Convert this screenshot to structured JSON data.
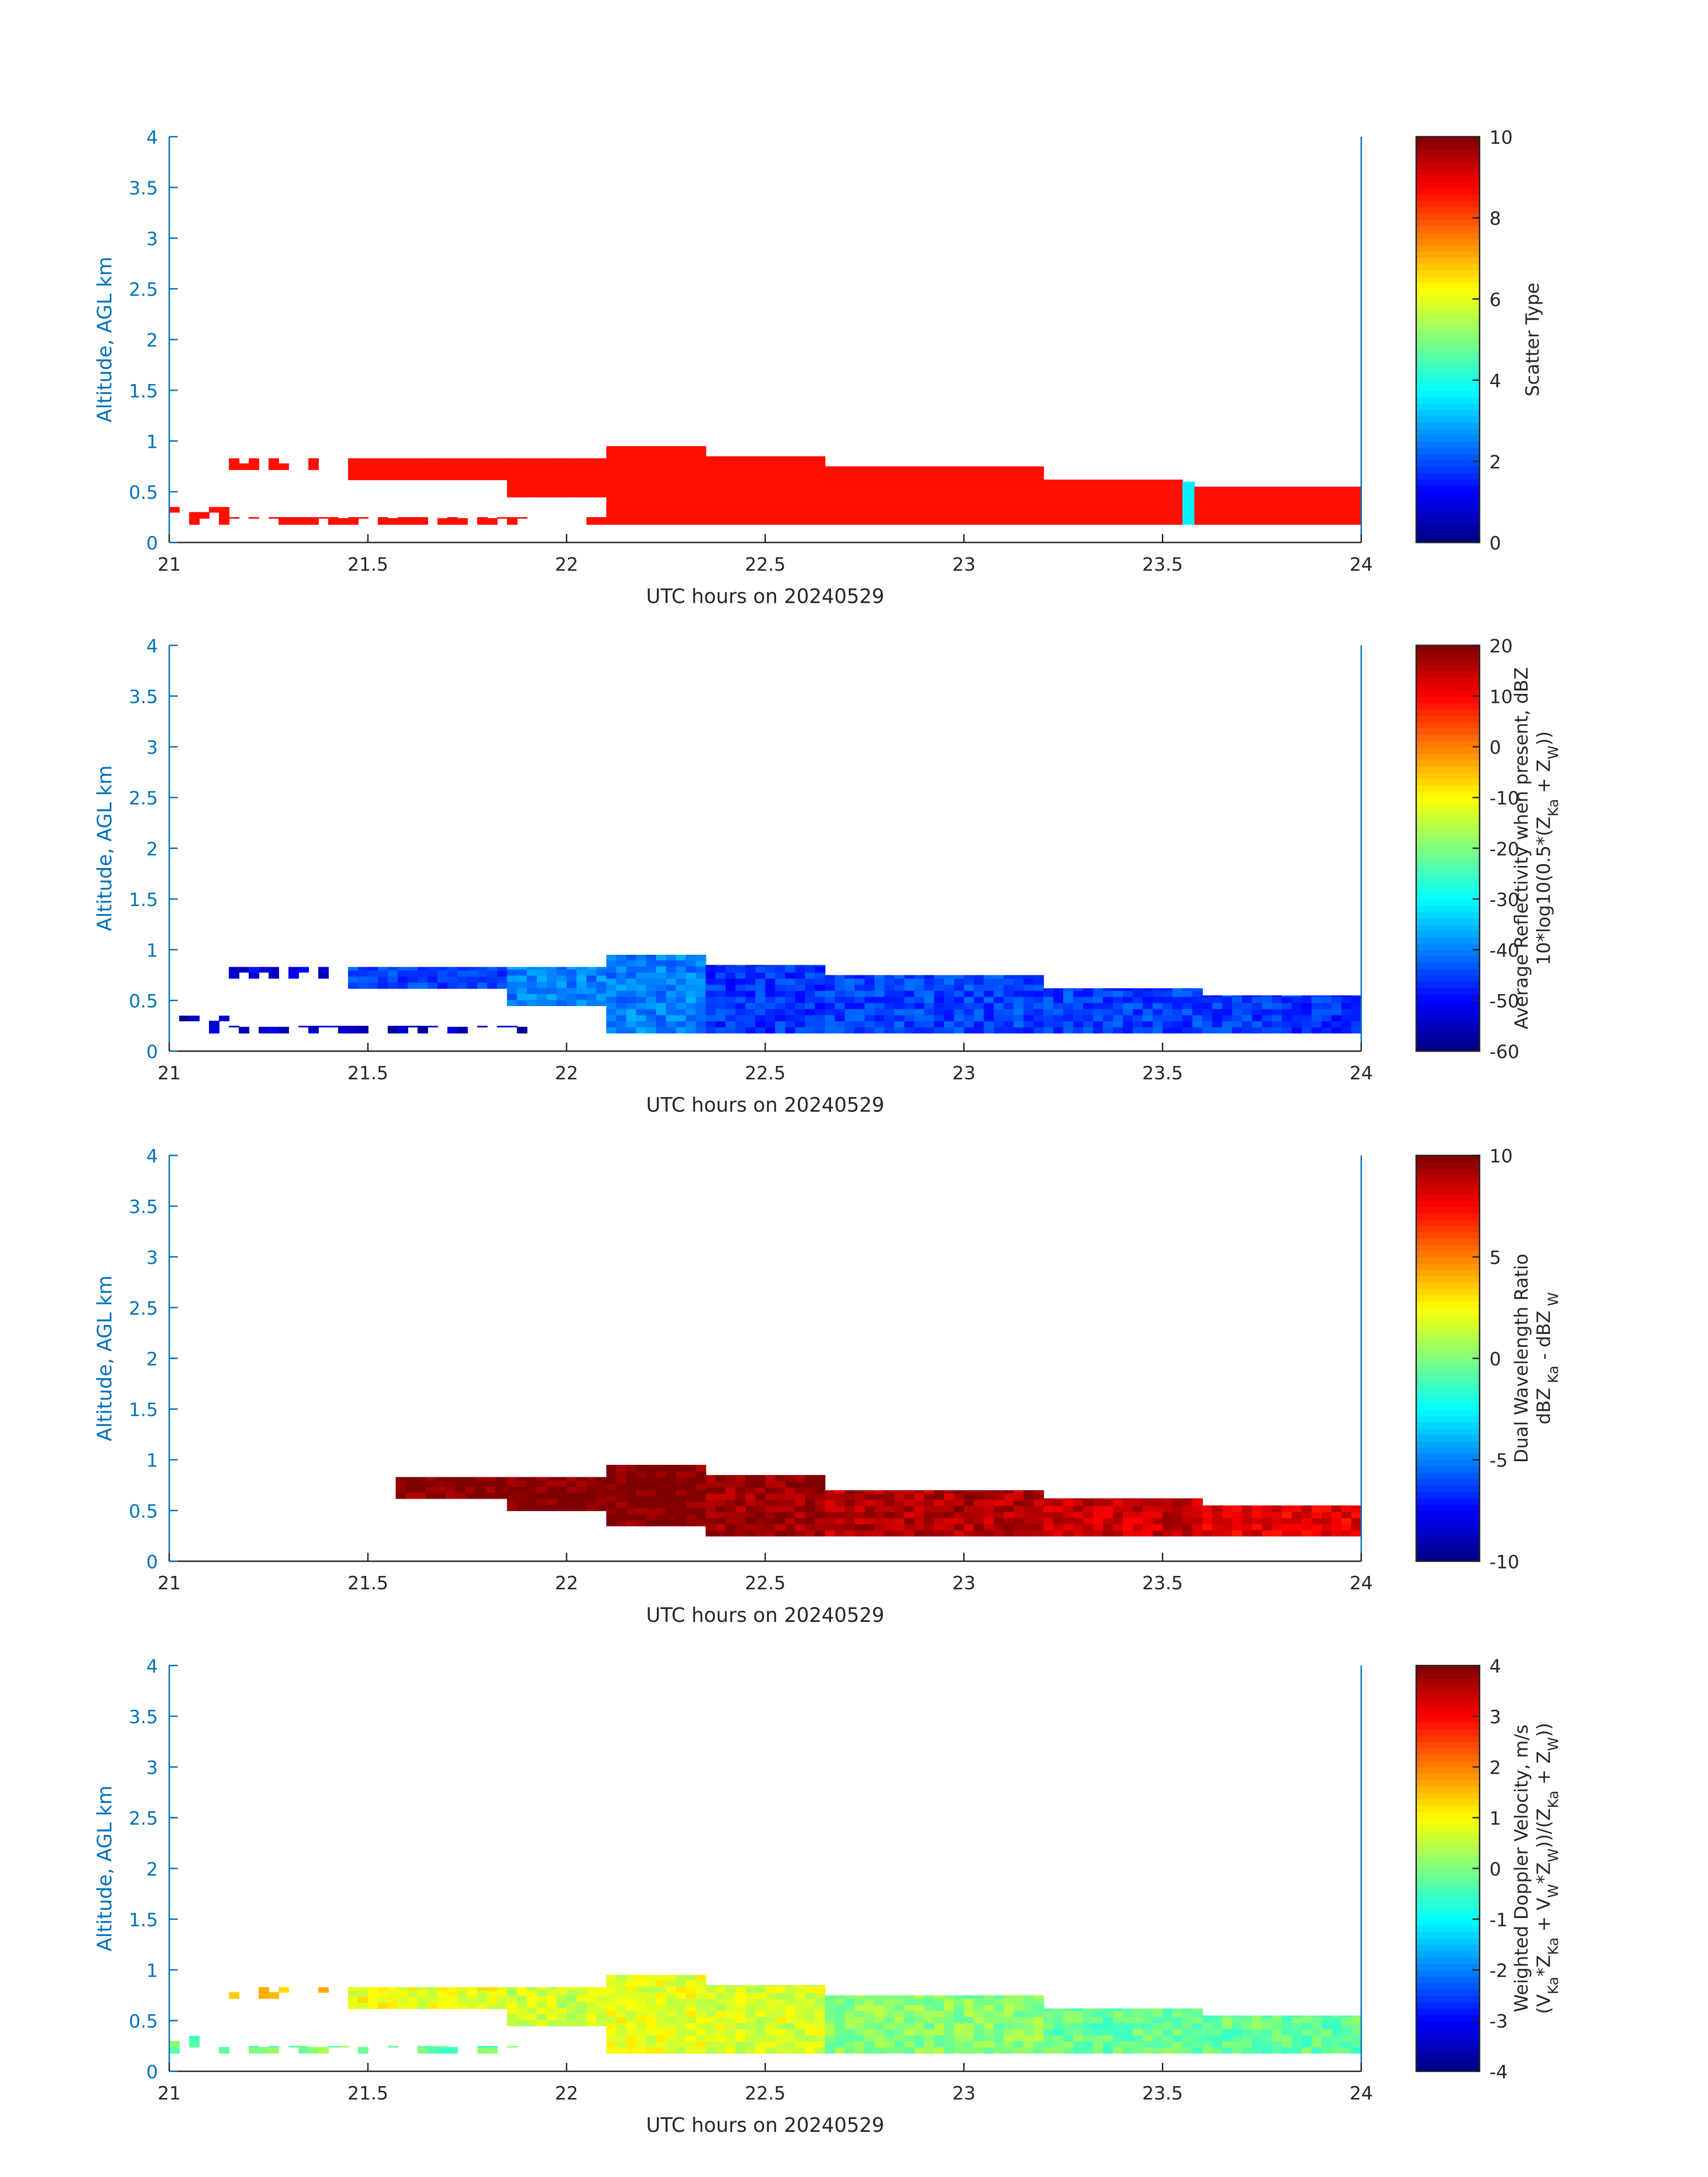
{
  "chart_data": [
    {
      "type": "heatmap",
      "xlabel": "UTC hours on 20240529",
      "ylabel": "Altitude, AGL km",
      "xlim": [
        21,
        24
      ],
      "ylim": [
        0,
        4
      ],
      "xticks": [
        "21",
        "21.5",
        "22",
        "22.5",
        "23",
        "23.5",
        "24"
      ],
      "yticks": [
        "0",
        "0.5",
        "1",
        "1.5",
        "2",
        "2.5",
        "3",
        "3.5",
        "4"
      ],
      "colormap": "jet",
      "clim": [
        0,
        10
      ],
      "cticks": [
        "0",
        "2",
        "4",
        "6",
        "8",
        "10"
      ],
      "colorbar_label": [
        [
          {
            "t": "Scatter Type"
          }
        ]
      ],
      "regions": [
        {
          "x": [
            21.0,
            21.15
          ],
          "y": [
            0.18,
            0.35
          ],
          "value": 8.6,
          "sparse": true
        },
        {
          "x": [
            21.15,
            21.45
          ],
          "y": [
            0.18,
            0.25
          ],
          "value": 8.6,
          "sparse": true
        },
        {
          "x": [
            21.15,
            21.4
          ],
          "y": [
            0.72,
            0.83
          ],
          "value": 8.6,
          "sparse": true
        },
        {
          "x": [
            21.45,
            21.9
          ],
          "y": [
            0.18,
            0.25
          ],
          "value": 8.6,
          "sparse": true
        },
        {
          "x": [
            21.45,
            21.85
          ],
          "y": [
            0.62,
            0.83
          ],
          "value": 8.6
        },
        {
          "x": [
            21.85,
            22.1
          ],
          "y": [
            0.45,
            0.83
          ],
          "value": 8.6
        },
        {
          "x": [
            22.05,
            22.1
          ],
          "y": [
            0.18,
            0.25
          ],
          "value": 8.6
        },
        {
          "x": [
            22.1,
            22.35
          ],
          "y": [
            0.18,
            0.95
          ],
          "value": 8.6
        },
        {
          "x": [
            22.35,
            22.65
          ],
          "y": [
            0.18,
            0.85
          ],
          "value": 8.6
        },
        {
          "x": [
            22.65,
            23.2
          ],
          "y": [
            0.18,
            0.75
          ],
          "value": 8.6
        },
        {
          "x": [
            23.2,
            23.55
          ],
          "y": [
            0.18,
            0.62
          ],
          "value": 8.6
        },
        {
          "x": [
            23.55,
            23.58
          ],
          "y": [
            0.18,
            0.6
          ],
          "value": 3.6
        },
        {
          "x": [
            23.58,
            24.0
          ],
          "y": [
            0.18,
            0.55
          ],
          "value": 8.6
        }
      ]
    },
    {
      "type": "heatmap",
      "xlabel": "UTC hours on 20240529",
      "ylabel": "Altitude, AGL km",
      "xlim": [
        21,
        24
      ],
      "ylim": [
        0,
        4
      ],
      "xticks": [
        "21",
        "21.5",
        "22",
        "22.5",
        "23",
        "23.5",
        "24"
      ],
      "yticks": [
        "0",
        "0.5",
        "1",
        "1.5",
        "2",
        "2.5",
        "3",
        "3.5",
        "4"
      ],
      "colormap": "jet",
      "clim": [
        -60,
        20
      ],
      "cticks": [
        "-60",
        "-50",
        "-40",
        "-30",
        "-20",
        "-10",
        "0",
        "10",
        "20"
      ],
      "colorbar_label": [
        [
          {
            "t": "Average Reflectivity when present, dBZ"
          }
        ],
        [
          {
            "t": "10*log10(0.5*(Z"
          },
          {
            "t": "Ka",
            "sub": true
          },
          {
            "t": " + Z"
          },
          {
            "t": "W",
            "sub": true
          },
          {
            "t": "))"
          }
        ]
      ],
      "regions": [
        {
          "x": [
            21.0,
            21.15
          ],
          "y": [
            0.18,
            0.35
          ],
          "value": -55,
          "sparse": true
        },
        {
          "x": [
            21.15,
            21.45
          ],
          "y": [
            0.18,
            0.25
          ],
          "value": -55,
          "sparse": true
        },
        {
          "x": [
            21.15,
            21.4
          ],
          "y": [
            0.72,
            0.83
          ],
          "value": -52,
          "sparse": true
        },
        {
          "x": [
            21.45,
            21.9
          ],
          "y": [
            0.18,
            0.25
          ],
          "value": -55,
          "sparse": true
        },
        {
          "x": [
            21.45,
            21.85
          ],
          "y": [
            0.62,
            0.83
          ],
          "value": -45
        },
        {
          "x": [
            21.85,
            22.1
          ],
          "y": [
            0.45,
            0.83
          ],
          "value": -40
        },
        {
          "x": [
            22.1,
            22.35
          ],
          "y": [
            0.18,
            0.95
          ],
          "value": -40
        },
        {
          "x": [
            22.35,
            22.65
          ],
          "y": [
            0.18,
            0.85
          ],
          "value": -46
        },
        {
          "x": [
            22.65,
            23.2
          ],
          "y": [
            0.18,
            0.75
          ],
          "value": -45
        },
        {
          "x": [
            23.2,
            23.6
          ],
          "y": [
            0.18,
            0.62
          ],
          "value": -45
        },
        {
          "x": [
            23.6,
            24.0
          ],
          "y": [
            0.18,
            0.55
          ],
          "value": -46
        }
      ]
    },
    {
      "type": "heatmap",
      "xlabel": "UTC hours on 20240529",
      "ylabel": "Altitude, AGL km",
      "xlim": [
        21,
        24
      ],
      "ylim": [
        0,
        4
      ],
      "xticks": [
        "21",
        "21.5",
        "22",
        "22.5",
        "23",
        "23.5",
        "24"
      ],
      "yticks": [
        "0",
        "0.5",
        "1",
        "1.5",
        "2",
        "2.5",
        "3",
        "3.5",
        "4"
      ],
      "colormap": "jet",
      "clim": [
        -10,
        10
      ],
      "cticks": [
        "-10",
        "-5",
        "0",
        "5",
        "10"
      ],
      "colorbar_label": [
        [
          {
            "t": "Dual Wavelength Ratio"
          }
        ],
        [
          {
            "t": "dBZ"
          },
          {
            "t": " Ka",
            "sub": true
          },
          {
            "t": " - dBZ"
          },
          {
            "t": " W",
            "sub": true
          }
        ]
      ],
      "regions": [
        {
          "x": [
            21.57,
            21.85
          ],
          "y": [
            0.62,
            0.83
          ],
          "value": 10
        },
        {
          "x": [
            21.85,
            22.1
          ],
          "y": [
            0.5,
            0.83
          ],
          "value": 10
        },
        {
          "x": [
            22.1,
            22.35
          ],
          "y": [
            0.35,
            0.95
          ],
          "value": 10
        },
        {
          "x": [
            22.35,
            22.65
          ],
          "y": [
            0.25,
            0.85
          ],
          "value": 9.5
        },
        {
          "x": [
            22.65,
            23.2
          ],
          "y": [
            0.25,
            0.7
          ],
          "value": 9
        },
        {
          "x": [
            23.2,
            23.6
          ],
          "y": [
            0.25,
            0.62
          ],
          "value": 8.5
        },
        {
          "x": [
            23.6,
            24.0
          ],
          "y": [
            0.25,
            0.55
          ],
          "value": 8
        }
      ]
    },
    {
      "type": "heatmap",
      "xlabel": "UTC hours on 20240529",
      "ylabel": "Altitude, AGL km",
      "xlim": [
        21,
        24
      ],
      "ylim": [
        0,
        4
      ],
      "xticks": [
        "21",
        "21.5",
        "22",
        "22.5",
        "23",
        "23.5",
        "24"
      ],
      "yticks": [
        "0",
        "0.5",
        "1",
        "1.5",
        "2",
        "2.5",
        "3",
        "3.5",
        "4"
      ],
      "colormap": "jet",
      "clim": [
        -4,
        4
      ],
      "cticks": [
        "-4",
        "-3",
        "-2",
        "-1",
        "0",
        "1",
        "2",
        "3",
        "4"
      ],
      "colorbar_label": [
        [
          {
            "t": "Weighted Doppler Velocity, m/s"
          }
        ],
        [
          {
            "t": "(V"
          },
          {
            "t": "Ka",
            "sub": true
          },
          {
            "t": "*Z"
          },
          {
            "t": "Ka",
            "sub": true
          },
          {
            "t": " + V"
          },
          {
            "t": "W",
            "sub": true
          },
          {
            "t": "*Z"
          },
          {
            "t": "W",
            "sub": true
          },
          {
            "t": "))/(Z"
          },
          {
            "t": "Ka",
            "sub": true
          },
          {
            "t": " + Z"
          },
          {
            "t": "W",
            "sub": true
          },
          {
            "t": "))"
          }
        ]
      ],
      "regions": [
        {
          "x": [
            21.0,
            21.15
          ],
          "y": [
            0.18,
            0.35
          ],
          "value": -0.3,
          "sparse": true
        },
        {
          "x": [
            21.15,
            21.45
          ],
          "y": [
            0.18,
            0.25
          ],
          "value": 0.0,
          "sparse": true
        },
        {
          "x": [
            21.15,
            21.4
          ],
          "y": [
            0.72,
            0.83
          ],
          "value": 1.3,
          "sparse": true
        },
        {
          "x": [
            21.45,
            21.9
          ],
          "y": [
            0.18,
            0.25
          ],
          "value": -0.2,
          "sparse": true
        },
        {
          "x": [
            21.45,
            21.85
          ],
          "y": [
            0.62,
            0.83
          ],
          "value": 0.9
        },
        {
          "x": [
            21.85,
            22.1
          ],
          "y": [
            0.45,
            0.83
          ],
          "value": 0.6
        },
        {
          "x": [
            22.1,
            22.35
          ],
          "y": [
            0.18,
            0.95
          ],
          "value": 0.8
        },
        {
          "x": [
            22.35,
            22.65
          ],
          "y": [
            0.18,
            0.85
          ],
          "value": 0.7
        },
        {
          "x": [
            22.65,
            23.2
          ],
          "y": [
            0.18,
            0.75
          ],
          "value": 0.1
        },
        {
          "x": [
            23.2,
            23.6
          ],
          "y": [
            0.18,
            0.62
          ],
          "value": -0.2
        },
        {
          "x": [
            23.6,
            24.0
          ],
          "y": [
            0.18,
            0.55
          ],
          "value": -0.2
        }
      ]
    }
  ]
}
